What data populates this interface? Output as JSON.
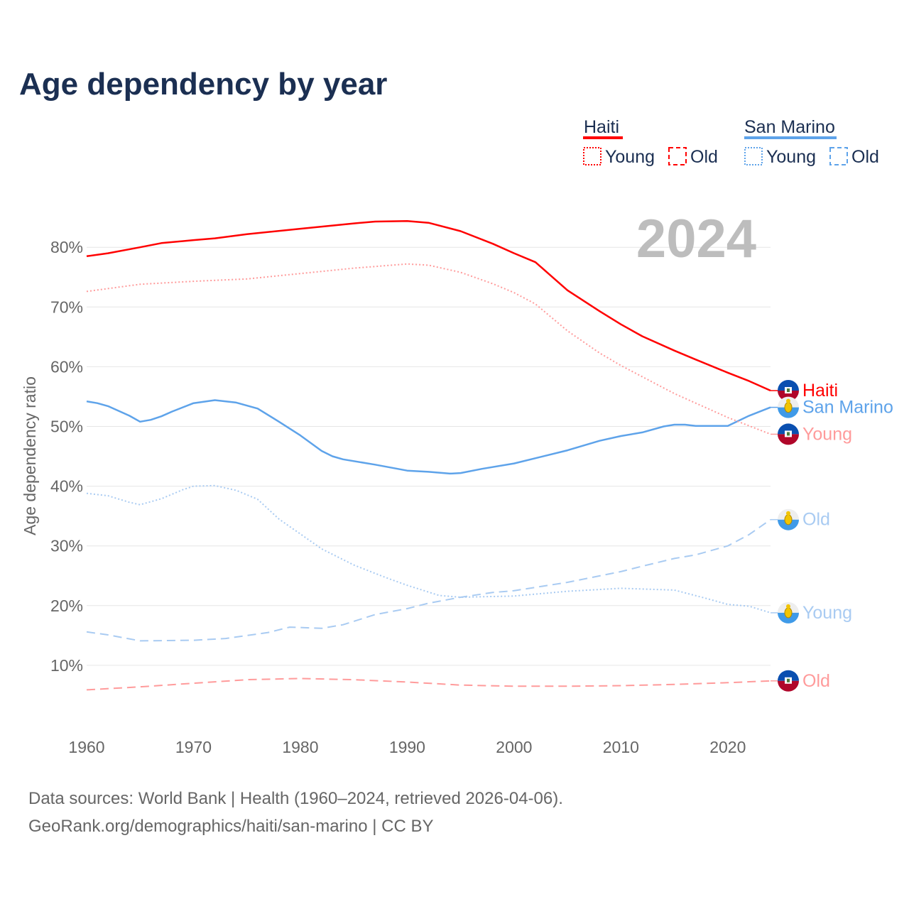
{
  "chart_data": {
    "type": "line",
    "title": "Age dependency by year",
    "ylabel": "Age dependency ratio",
    "xlabel": "",
    "xlim": [
      1960,
      2024
    ],
    "ylim": [
      0,
      85
    ],
    "x_ticks": [
      "1960",
      "1970",
      "1980",
      "1990",
      "2000",
      "2010",
      "2020"
    ],
    "y_ticks": [
      "10%",
      "20%",
      "30%",
      "40%",
      "50%",
      "60%",
      "70%",
      "80%"
    ],
    "grid": true,
    "year_watermark": "2024",
    "legend": {
      "placement": "top-right",
      "groups": [
        {
          "country": "Haiti",
          "color": "#ff0000",
          "items": [
            "Young",
            "Old"
          ]
        },
        {
          "country": "San Marino",
          "color": "#5ea3ea",
          "items": [
            "Young",
            "Old"
          ]
        }
      ]
    },
    "series": [
      {
        "name": "Haiti",
        "label": "Haiti",
        "color": "#ff0000",
        "dash": "solid",
        "flag": "haiti",
        "points": [
          [
            1960,
            78.5
          ],
          [
            1962,
            79.0
          ],
          [
            1965,
            80.0
          ],
          [
            1967,
            80.7
          ],
          [
            1970,
            81.2
          ],
          [
            1972,
            81.5
          ],
          [
            1975,
            82.2
          ],
          [
            1980,
            83.1
          ],
          [
            1985,
            84.0
          ],
          [
            1987,
            84.3
          ],
          [
            1990,
            84.4
          ],
          [
            1992,
            84.1
          ],
          [
            1995,
            82.7
          ],
          [
            1998,
            80.6
          ],
          [
            2000,
            79.0
          ],
          [
            2002,
            77.5
          ],
          [
            2005,
            72.8
          ],
          [
            2008,
            69.3
          ],
          [
            2010,
            67.1
          ],
          [
            2012,
            65.1
          ],
          [
            2015,
            62.7
          ],
          [
            2017,
            61.2
          ],
          [
            2020,
            59.0
          ],
          [
            2022,
            57.6
          ],
          [
            2024,
            56.0
          ]
        ]
      },
      {
        "name": "San Marino",
        "label": "San Marino",
        "color": "#5ea3ea",
        "dash": "solid",
        "flag": "san-marino",
        "points": [
          [
            1960,
            54.2
          ],
          [
            1961,
            53.9
          ],
          [
            1962,
            53.4
          ],
          [
            1964,
            51.8
          ],
          [
            1965,
            50.8
          ],
          [
            1966,
            51.1
          ],
          [
            1967,
            51.7
          ],
          [
            1968,
            52.5
          ],
          [
            1970,
            53.9
          ],
          [
            1972,
            54.4
          ],
          [
            1974,
            54.0
          ],
          [
            1976,
            53.0
          ],
          [
            1978,
            50.8
          ],
          [
            1980,
            48.5
          ],
          [
            1982,
            45.9
          ],
          [
            1983,
            45.0
          ],
          [
            1984,
            44.5
          ],
          [
            1987,
            43.6
          ],
          [
            1990,
            42.6
          ],
          [
            1992,
            42.4
          ],
          [
            1994,
            42.1
          ],
          [
            1995,
            42.2
          ],
          [
            1997,
            42.9
          ],
          [
            2000,
            43.8
          ],
          [
            2005,
            46.0
          ],
          [
            2008,
            47.6
          ],
          [
            2010,
            48.4
          ],
          [
            2012,
            49.0
          ],
          [
            2014,
            50.0
          ],
          [
            2015,
            50.3
          ],
          [
            2016,
            50.3
          ],
          [
            2017,
            50.1
          ],
          [
            2020,
            50.1
          ],
          [
            2022,
            51.8
          ],
          [
            2024,
            53.2
          ]
        ]
      },
      {
        "name": "Haiti Young",
        "label": "Young",
        "color": "#ff9b9b",
        "dash": "dotted",
        "flag": "haiti",
        "points": [
          [
            1960,
            72.6
          ],
          [
            1965,
            73.8
          ],
          [
            1970,
            74.3
          ],
          [
            1975,
            74.7
          ],
          [
            1980,
            75.6
          ],
          [
            1985,
            76.5
          ],
          [
            1990,
            77.2
          ],
          [
            1992,
            77.0
          ],
          [
            1995,
            75.8
          ],
          [
            1998,
            73.9
          ],
          [
            2000,
            72.4
          ],
          [
            2002,
            70.5
          ],
          [
            2005,
            66.0
          ],
          [
            2008,
            62.3
          ],
          [
            2010,
            60.2
          ],
          [
            2015,
            55.5
          ],
          [
            2020,
            51.5
          ],
          [
            2024,
            48.7
          ]
        ]
      },
      {
        "name": "San Marino Old",
        "label": "Old",
        "color": "#a9cbf2",
        "dash": "dashed",
        "flag": "san-marino",
        "points": [
          [
            1960,
            15.6
          ],
          [
            1962,
            15.1
          ],
          [
            1965,
            14.1
          ],
          [
            1970,
            14.2
          ],
          [
            1973,
            14.5
          ],
          [
            1975,
            15.0
          ],
          [
            1977,
            15.5
          ],
          [
            1979,
            16.4
          ],
          [
            1982,
            16.2
          ],
          [
            1984,
            16.8
          ],
          [
            1987,
            18.5
          ],
          [
            1990,
            19.5
          ],
          [
            1992,
            20.4
          ],
          [
            1995,
            21.4
          ],
          [
            1998,
            22.2
          ],
          [
            2000,
            22.5
          ],
          [
            2005,
            23.9
          ],
          [
            2010,
            25.7
          ],
          [
            2012,
            26.6
          ],
          [
            2015,
            27.9
          ],
          [
            2017,
            28.5
          ],
          [
            2020,
            30.0
          ],
          [
            2022,
            31.9
          ],
          [
            2024,
            34.4
          ]
        ]
      },
      {
        "name": "San Marino Young",
        "label": "Young",
        "color": "#a9cbf2",
        "dash": "dotted",
        "flag": "san-marino",
        "points": [
          [
            1960,
            38.8
          ],
          [
            1962,
            38.4
          ],
          [
            1964,
            37.3
          ],
          [
            1965,
            36.9
          ],
          [
            1967,
            37.9
          ],
          [
            1969,
            39.4
          ],
          [
            1970,
            40.0
          ],
          [
            1972,
            40.1
          ],
          [
            1974,
            39.3
          ],
          [
            1976,
            37.8
          ],
          [
            1978,
            34.5
          ],
          [
            1980,
            32.0
          ],
          [
            1982,
            29.5
          ],
          [
            1985,
            26.8
          ],
          [
            1988,
            24.7
          ],
          [
            1990,
            23.4
          ],
          [
            1993,
            21.7
          ],
          [
            1995,
            21.4
          ],
          [
            2000,
            21.6
          ],
          [
            2005,
            22.4
          ],
          [
            2010,
            22.9
          ],
          [
            2015,
            22.6
          ],
          [
            2018,
            21.2
          ],
          [
            2020,
            20.2
          ],
          [
            2022,
            19.9
          ],
          [
            2024,
            18.8
          ]
        ]
      },
      {
        "name": "Haiti Old",
        "label": "Old",
        "color": "#ff9b9b",
        "dash": "dashed",
        "flag": "haiti",
        "points": [
          [
            1960,
            5.9
          ],
          [
            1965,
            6.4
          ],
          [
            1970,
            7.0
          ],
          [
            1975,
            7.6
          ],
          [
            1980,
            7.8
          ],
          [
            1985,
            7.6
          ],
          [
            1990,
            7.2
          ],
          [
            1995,
            6.7
          ],
          [
            2000,
            6.5
          ],
          [
            2005,
            6.5
          ],
          [
            2010,
            6.6
          ],
          [
            2015,
            6.8
          ],
          [
            2020,
            7.1
          ],
          [
            2024,
            7.4
          ]
        ]
      }
    ]
  },
  "footer": {
    "source": "Data sources: World Bank | Health (1960–2024, retrieved 2026-04-06).",
    "attribution": "GeoRank.org/demographics/haiti/san-marino | CC BY"
  }
}
